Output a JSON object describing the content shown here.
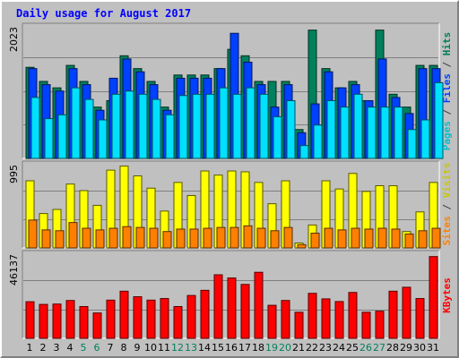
{
  "chart_data": {
    "type": "bar",
    "title": "Daily usage for August 2017",
    "categories": [
      "1",
      "2",
      "3",
      "4",
      "5",
      "6",
      "7",
      "8",
      "9",
      "10",
      "11",
      "12",
      "13",
      "14",
      "15",
      "16",
      "17",
      "18",
      "19",
      "20",
      "21",
      "22",
      "23",
      "24",
      "25",
      "26",
      "27",
      "28",
      "29",
      "30",
      "31"
    ],
    "weekend_days": [
      "5",
      "6",
      "12",
      "13",
      "19",
      "20",
      "26",
      "27"
    ],
    "grid": true,
    "panels": [
      {
        "name": "hits-files-pages",
        "max_label": "2023",
        "ylim": [
          0,
          2023
        ],
        "series": [
          {
            "name": "Hits",
            "color": "#00805c",
            "values": [
              1420,
              1200,
              1100,
              1450,
              1200,
              800,
              900,
              1600,
              1400,
              1200,
              800,
              1300,
              1300,
              1300,
              1400,
              1700,
              1600,
              1200,
              1200,
              1200,
              450,
              2000,
              1400,
              1100,
              1200,
              900,
              2000,
              1000,
              800,
              1450,
              1450
            ]
          },
          {
            "name": "Files",
            "color": "#0040ff",
            "values": [
              1400,
              1150,
              1050,
              1400,
              1150,
              750,
              1250,
              1550,
              1350,
              1150,
              750,
              1250,
              1250,
              1250,
              1400,
              1950,
              1500,
              1150,
              800,
              1150,
              400,
              850,
              1350,
              1100,
              1150,
              900,
              1550,
              950,
              700,
              1400,
              1400
            ]
          },
          {
            "name": "Pages",
            "color": "#00e0ff",
            "values": [
              950,
              620,
              680,
              1100,
              920,
              600,
              1000,
              1050,
              1000,
              920,
              680,
              980,
              1000,
              1000,
              1100,
              1000,
              1100,
              1000,
              650,
              900,
              200,
              520,
              900,
              800,
              1000,
              800,
              800,
              800,
              450,
              600,
              1180
            ]
          }
        ]
      },
      {
        "name": "visits-sites",
        "max_label": "995",
        "ylim": [
          0,
          995
        ],
        "series": [
          {
            "name": "Visits",
            "color": "#ffff00",
            "values": [
              820,
              420,
              470,
              780,
              700,
              520,
              950,
              1000,
              880,
              730,
              450,
              800,
              640,
              940,
              890,
              940,
              930,
              800,
              540,
              820,
              60,
              280,
              820,
              720,
              910,
              690,
              760,
              760,
              200,
              440,
              800
            ]
          },
          {
            "name": "Sites",
            "color": "#ff8000",
            "values": [
              340,
              220,
              210,
              310,
              240,
              220,
              240,
              260,
              250,
              240,
              200,
              230,
              230,
              240,
              250,
              250,
              270,
              240,
              210,
              250,
              40,
              180,
              240,
              220,
              240,
              230,
              240,
              230,
              170,
              210,
              240
            ]
          }
        ]
      },
      {
        "name": "kbytes",
        "max_label": "46137",
        "ylim": [
          0,
          46137
        ],
        "series": [
          {
            "name": "KBytes",
            "color": "#ff0000",
            "values": [
              20500,
              19000,
              19200,
              21200,
              17800,
              14200,
              21400,
              26400,
              23300,
              21400,
              22300,
              17800,
              24000,
              26900,
              35600,
              33800,
              30200,
              37000,
              18500,
              21200,
              14600,
              25200,
              22100,
              20600,
              25700,
              14600,
              15200,
              26400,
              28600,
              22300,
              45800
            ]
          }
        ]
      }
    ]
  },
  "legend": {
    "panel1": [
      {
        "text": "Pages",
        "color": "#00c0d0"
      },
      {
        "text": " / ",
        "color": "#404040"
      },
      {
        "text": "Files",
        "color": "#0040ff"
      },
      {
        "text": " / ",
        "color": "#404040"
      },
      {
        "text": "Hits",
        "color": "#00805c"
      }
    ],
    "panel2": [
      {
        "text": "Sites",
        "color": "#ff8000"
      },
      {
        "text": " / ",
        "color": "#404040"
      },
      {
        "text": "Visits",
        "color": "#c8c800"
      }
    ],
    "panel3": [
      {
        "text": "KBytes",
        "color": "#ff0000"
      }
    ]
  },
  "colors": {
    "title": "#0000ff",
    "weekday_tick": "#000000",
    "weekend_tick": "#00805c",
    "panel_background": "#c0c0c0",
    "gridline": "#808080"
  }
}
